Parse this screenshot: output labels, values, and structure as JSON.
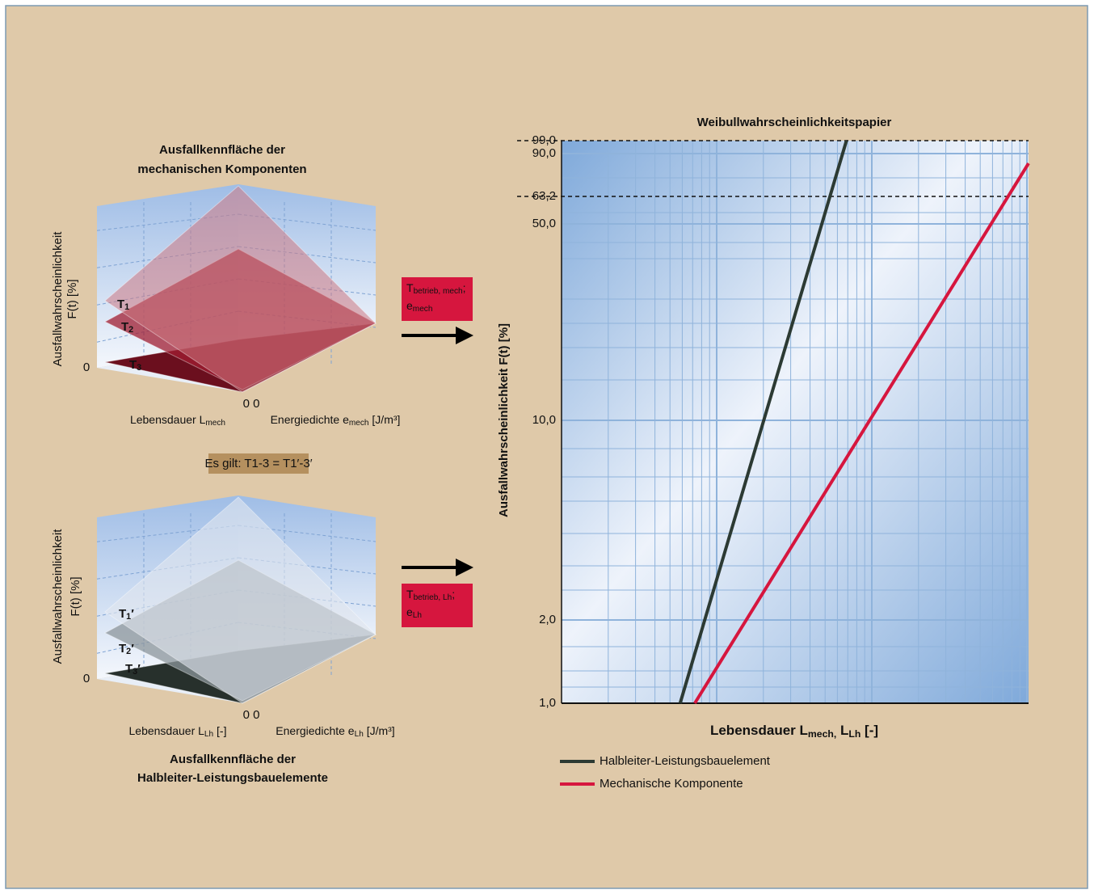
{
  "chart_data": {
    "type": "line",
    "title": "Weibullwahrscheinlichkeitspapier",
    "xlabel": [
      "Lebensdauer L",
      "mech,",
      " L",
      "Lh",
      " [-]"
    ],
    "ylabel": "Ausfallwahrscheinlichkeit F(t) [%]",
    "xscale": "log",
    "yscale": "weibull",
    "xlim": [
      1,
      100
    ],
    "ylim": [
      1,
      99
    ],
    "yticks": [
      {
        "value": 1,
        "label": "1,0"
      },
      {
        "value": 2,
        "label": "2,0"
      },
      {
        "value": 10,
        "label": "10,0"
      },
      {
        "value": 50,
        "label": "50,0"
      },
      {
        "value": 63.2,
        "label": "63,2",
        "style": "dashed"
      },
      {
        "value": 90,
        "label": "90,0"
      },
      {
        "value": 99,
        "label": "99,0",
        "style": "dashed"
      }
    ],
    "grid": true,
    "legend": "below",
    "series": [
      {
        "name": "Halbleiter-Leistungsbauelement",
        "color": "#2c3a33",
        "x": [
          3.22,
          16.6
        ],
        "values": [
          1,
          99
        ]
      },
      {
        "name": "Mechanische Komponente",
        "color": "#d6163e",
        "x": [
          3.72,
          100
        ],
        "values": [
          1,
          85.1
        ]
      }
    ]
  },
  "diagrams": [
    {
      "title": [
        "Ausfallkennfläche der",
        "mechanischen Komponenten"
      ],
      "ylabel": [
        "Ausfallwahrscheinlichkeit",
        "F(t) [%]"
      ],
      "zero": "0",
      "origin": "0 0",
      "xlabel": [
        "Lebensdauer L",
        "mech"
      ],
      "zlabel": [
        "Energiedichte e",
        "mech",
        " [J/m³]"
      ],
      "surfaces": [
        [
          "T",
          "1"
        ],
        [
          "T",
          "2"
        ],
        [
          "T",
          "3"
        ]
      ],
      "box": [
        [
          "T",
          "betrieb, mech",
          ";"
        ],
        [
          "e",
          "mech"
        ]
      ]
    },
    {
      "title": [
        "Ausfallkennfläche der",
        "Halbleiter-Leistungsbauelemente"
      ],
      "ylabel": [
        "Ausfallwahrscheinlichkeit",
        "F(t) [%]"
      ],
      "zero": "0",
      "origin": "0 0",
      "xlabel": [
        "Lebensdauer L",
        "Lh",
        " [-]"
      ],
      "zlabel": [
        "Energiedichte e",
        "Lh",
        " [J/m³]"
      ],
      "surfaces": [
        [
          "T",
          "1",
          "′"
        ],
        [
          "T",
          "2",
          "′"
        ],
        [
          "T",
          "3",
          "′"
        ]
      ],
      "box": [
        [
          "T",
          "betrieb, Lh",
          ";"
        ],
        [
          "e",
          "Lh"
        ]
      ]
    }
  ],
  "note": "Es gilt: T1-3 = T1′-3′"
}
